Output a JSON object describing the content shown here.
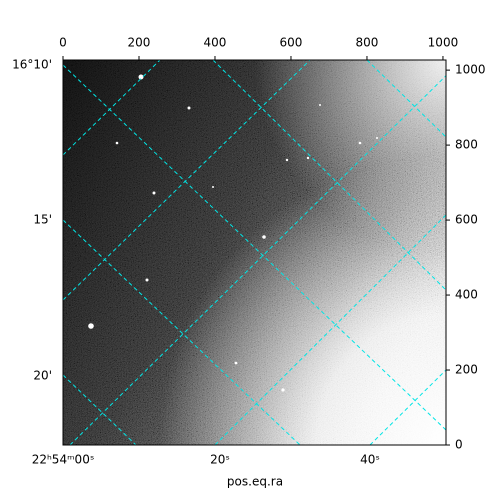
{
  "chart_data": {
    "type": "image",
    "xlabel": "pos.eq.ra",
    "xlim": [
      0,
      1008
    ],
    "ylim": [
      0,
      1027
    ],
    "xticks": [
      0,
      200,
      400,
      600,
      800,
      1000
    ],
    "yticks": [
      0,
      200,
      400,
      600,
      800,
      1000
    ],
    "ra_tick_labels": [
      "22ʰ54ᵐ00ˢ",
      "20ˢ",
      "40ˢ"
    ],
    "dec_tick_labels": [
      "16°10'",
      "15'",
      "20'"
    ],
    "grid": true,
    "grid_color": "#00e5e5"
  }
}
